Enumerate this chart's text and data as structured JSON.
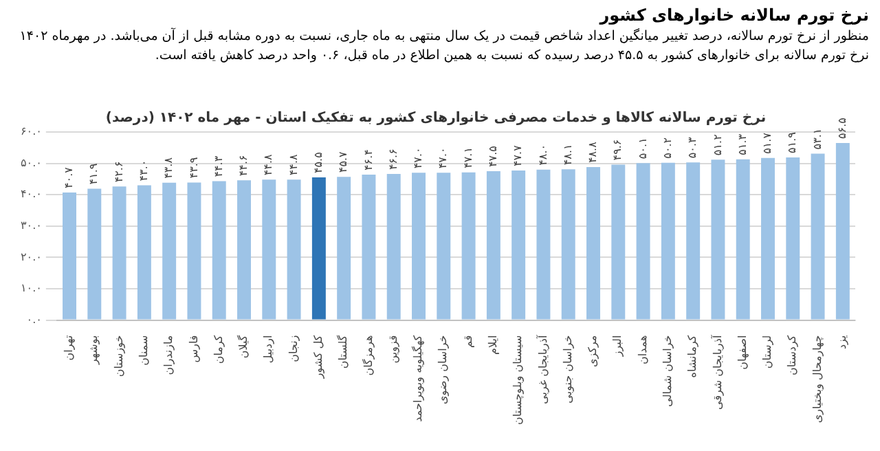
{
  "chart_data": {
    "type": "bar",
    "title": "نرخ تورم سالانه خانوارهای کشور",
    "subtitle": "منظور از نرخ تورم سالانه، درصد تغییر میانگین اعداد شاخص قیمت در یک سال منتهی به ماه جاری، نسبت به دوره مشابه قبل از آن می‌باشد. در مهرماه ۱۴۰۲ نرخ تورم سالانه برای خانوارهای کشور به ۴۵.۵ درصد رسیده که نسبت به همین اطلاع در ماه قبل، ۰.۶ واحد درصد کاهش یافته است.",
    "annotations": [
      "نرخ تورم سالانه کالاها و خدمات مصرفی خانوارهای کشور به تفکیک استان - مهر ماه ۱۴۰۲ (درصد)"
    ],
    "categories": [
      "تهران",
      "بوشهر",
      "خوزستان",
      "سمنان",
      "مازندران",
      "فارس",
      "کرمان",
      "گیلان",
      "اردبیل",
      "زنجان",
      "کل کشور",
      "گلستان",
      "هرمزگان",
      "قزوین",
      "کهگیلویه وبویراحمد",
      "خراسان رضوی",
      "قم",
      "ایلام",
      "سیستان وبلوچستان",
      "آذربایجان غربی",
      "خراسان جنوبی",
      "مرکزی",
      "البرز",
      "همدان",
      "خراسان شمالی",
      "کرمانشاه",
      "آذربایجان شرقی",
      "اصفهان",
      "لرستان",
      "کردستان",
      "چهارمحال وبختیاری",
      "یزد"
    ],
    "values": [
      40.7,
      41.9,
      42.6,
      43.0,
      43.8,
      43.9,
      44.3,
      44.6,
      44.8,
      44.8,
      45.5,
      45.7,
      46.4,
      46.6,
      47.0,
      47.0,
      47.1,
      47.5,
      47.7,
      48.0,
      48.1,
      48.8,
      49.6,
      50.1,
      50.2,
      50.3,
      51.2,
      51.3,
      51.7,
      51.9,
      53.1,
      56.5
    ],
    "value_labels": [
      "۴۰.۷",
      "۴۱.۹",
      "۴۲.۶",
      "۴۳.۰",
      "۴۳.۸",
      "۴۳.۹",
      "۴۴.۳",
      "۴۴.۶",
      "۴۴.۸",
      "۴۴.۸",
      "۴۵.۵",
      "۴۵.۷",
      "۴۶.۴",
      "۴۶.۶",
      "۴۷.۰",
      "۴۷.۰",
      "۴۷.۱",
      "۴۷.۵",
      "۴۷.۷",
      "۴۸.۰",
      "۴۸.۱",
      "۴۸.۸",
      "۴۹.۶",
      "۵۰.۱",
      "۵۰.۲",
      "۵۰.۳",
      "۵۱.۲",
      "۵۱.۳",
      "۵۱.۷",
      "۵۱.۹",
      "۵۳.۱",
      "۵۶.۵"
    ],
    "colors": [
      "#9dc3e6",
      "#9dc3e6",
      "#9dc3e6",
      "#9dc3e6",
      "#9dc3e6",
      "#9dc3e6",
      "#9dc3e6",
      "#9dc3e6",
      "#9dc3e6",
      "#9dc3e6",
      "#2e75b6",
      "#9dc3e6",
      "#9dc3e6",
      "#9dc3e6",
      "#9dc3e6",
      "#9dc3e6",
      "#9dc3e6",
      "#9dc3e6",
      "#9dc3e6",
      "#9dc3e6",
      "#9dc3e6",
      "#9dc3e6",
      "#9dc3e6",
      "#9dc3e6",
      "#9dc3e6",
      "#9dc3e6",
      "#9dc3e6",
      "#9dc3e6",
      "#9dc3e6",
      "#9dc3e6",
      "#9dc3e6",
      "#9dc3e6"
    ],
    "ylim": [
      0,
      60
    ],
    "yticks": [
      {
        "value": 0,
        "label": "۰.۰"
      },
      {
        "value": 10,
        "label": "۱۰.۰"
      },
      {
        "value": 20,
        "label": "۲۰.۰"
      },
      {
        "value": 30,
        "label": "۳۰.۰"
      },
      {
        "value": 40,
        "label": "۴۰.۰"
      },
      {
        "value": 50,
        "label": "۵۰.۰"
      },
      {
        "value": 60,
        "label": "۶۰.۰"
      }
    ],
    "grid": "y",
    "legend": false
  }
}
